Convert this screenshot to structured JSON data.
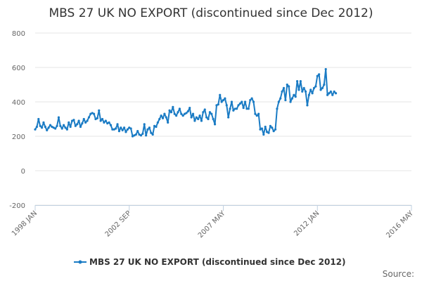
{
  "chart_data": {
    "type": "line",
    "title": "MBS 27 UK NO EXPORT (discontinued since Dec 2012)",
    "xlabel": "",
    "ylabel": "",
    "ylim": [
      -200,
      800
    ],
    "y_ticks": [
      "800",
      "600",
      "400",
      "200",
      "0",
      "-200"
    ],
    "x_ticks": [
      "1998 JAN",
      "2002 SEP",
      "2007 MAY",
      "2012 JAN",
      "2016 MAY"
    ],
    "grid": true,
    "legend_position": "bottom",
    "x_start": "1998-01",
    "x_frequency": "monthly",
    "series": [
      {
        "name": "MBS 27 UK NO EXPORT (discontinued since Dec 2012)",
        "color": "#1a7bc4",
        "values": [
          240,
          255,
          300,
          260,
          250,
          280,
          255,
          235,
          250,
          265,
          255,
          250,
          245,
          260,
          310,
          260,
          245,
          265,
          250,
          240,
          280,
          255,
          290,
          295,
          260,
          270,
          290,
          255,
          275,
          300,
          280,
          290,
          310,
          330,
          335,
          330,
          300,
          305,
          350,
          290,
          300,
          280,
          290,
          275,
          280,
          265,
          240,
          240,
          245,
          270,
          230,
          250,
          235,
          250,
          225,
          240,
          250,
          245,
          200,
          205,
          210,
          230,
          210,
          205,
          215,
          270,
          205,
          240,
          250,
          220,
          210,
          260,
          255,
          280,
          300,
          320,
          305,
          330,
          310,
          280,
          350,
          340,
          370,
          330,
          320,
          340,
          360,
          330,
          320,
          330,
          335,
          345,
          365,
          310,
          330,
          290,
          310,
          300,
          320,
          290,
          340,
          355,
          310,
          300,
          340,
          330,
          300,
          270,
          380,
          385,
          440,
          400,
          410,
          420,
          380,
          310,
          360,
          400,
          350,
          360,
          360,
          380,
          390,
          400,
          365,
          400,
          360,
          360,
          410,
          420,
          400,
          330,
          320,
          330,
          240,
          245,
          210,
          255,
          225,
          220,
          260,
          250,
          230,
          240,
          360,
          400,
          420,
          460,
          480,
          410,
          500,
          490,
          400,
          420,
          440,
          430,
          520,
          470,
          520,
          460,
          480,
          460,
          380,
          440,
          470,
          450,
          480,
          490,
          550,
          560,
          470,
          480,
          500,
          590,
          440,
          450,
          460,
          440,
          460,
          450
        ]
      }
    ]
  },
  "footer": {
    "source_label": "Source:"
  }
}
